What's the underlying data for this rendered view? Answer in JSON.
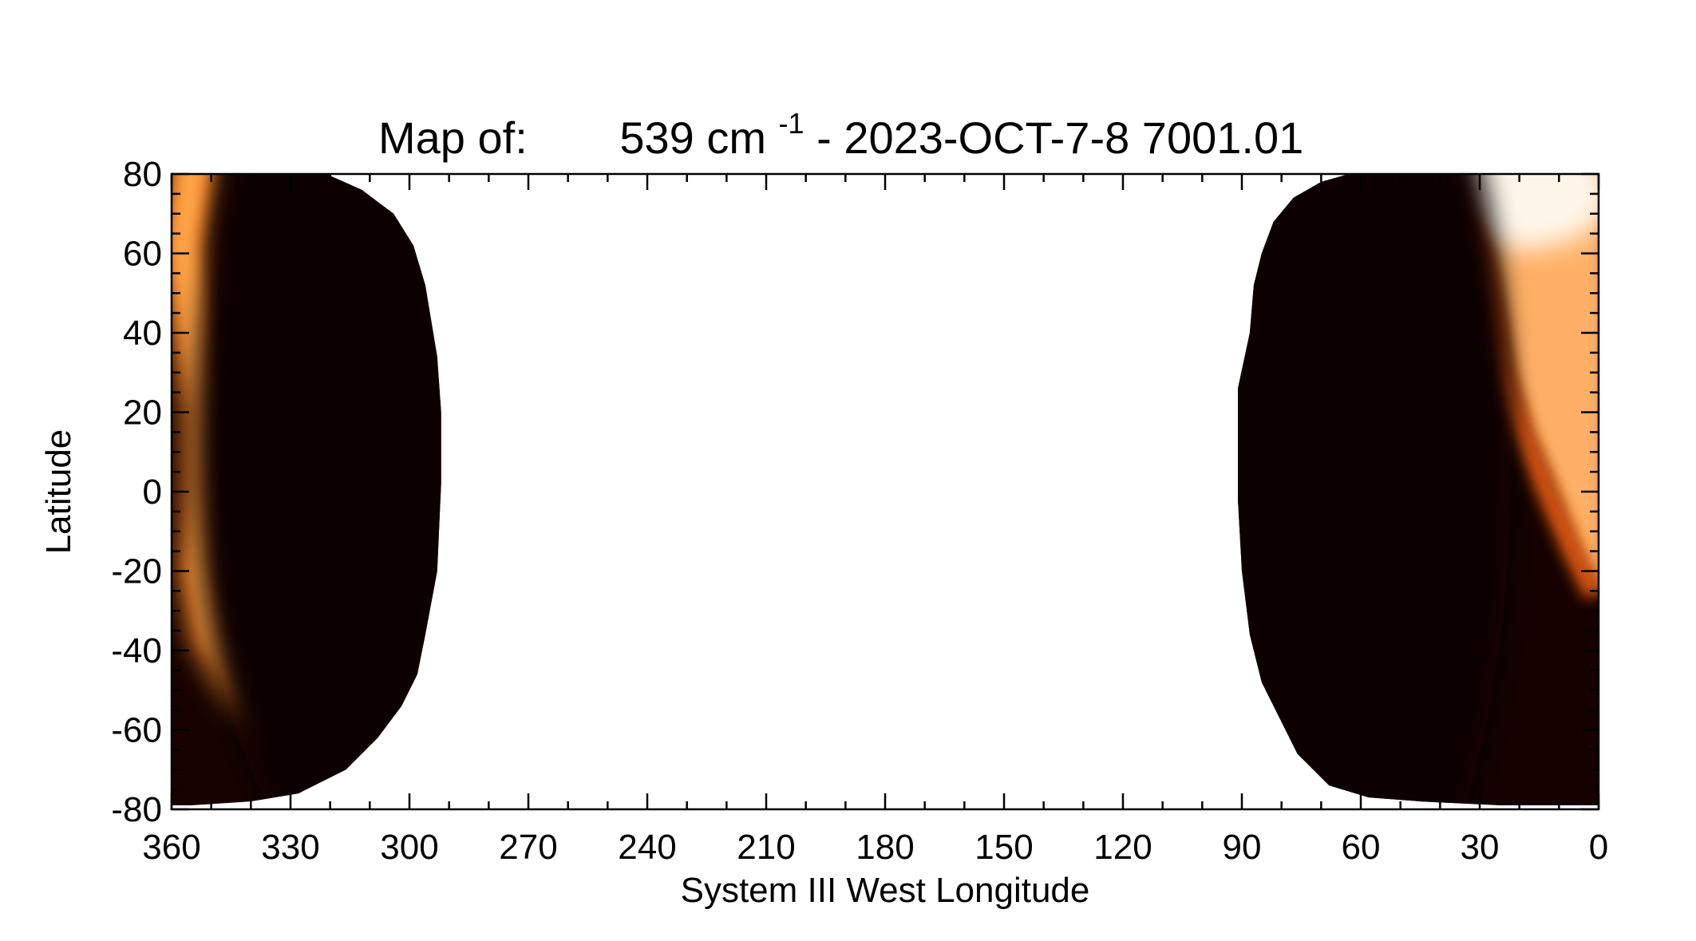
{
  "chart_data": {
    "type": "heatmap",
    "title": {
      "prefix": "Map of:",
      "value": "539 cm",
      "superscript": "-1",
      "suffix": " - 2023-OCT-7-8 7001.01"
    },
    "xlabel": "System III West Longitude",
    "ylabel": "Latitude",
    "xlim": [
      360,
      0
    ],
    "ylim": [
      -80,
      80
    ],
    "x_ticks": [
      "360",
      "330",
      "300",
      "270",
      "240",
      "210",
      "180",
      "150",
      "120",
      "90",
      "60",
      "30",
      "0"
    ],
    "y_ticks": [
      "80",
      "60",
      "40",
      "20",
      "0",
      "-20",
      "-40",
      "-60",
      "-80"
    ],
    "x_tick_values": [
      360,
      330,
      300,
      270,
      240,
      210,
      180,
      150,
      120,
      90,
      60,
      30,
      0
    ],
    "y_tick_values": [
      80,
      60,
      40,
      20,
      0,
      -20,
      -40,
      -60,
      -80
    ],
    "colormap": [
      "#000000",
      "#2a0500",
      "#5a1300",
      "#a53200",
      "#e0620c",
      "#ff8d2e",
      "#ffb266",
      "#ffd4a0",
      "#ffffff"
    ],
    "data_coverage": {
      "left_region_lon": [
        360,
        292
      ],
      "right_region_lon": [
        92,
        0
      ],
      "lat": [
        -80,
        80
      ]
    },
    "features": [
      {
        "name": "bright limb band",
        "lon_range": [
          360,
          320
        ],
        "lat_range": [
          -70,
          80
        ]
      },
      {
        "name": "bright limb band",
        "lon_range": [
          45,
          0
        ],
        "lat_range": [
          -20,
          80
        ]
      }
    ]
  }
}
